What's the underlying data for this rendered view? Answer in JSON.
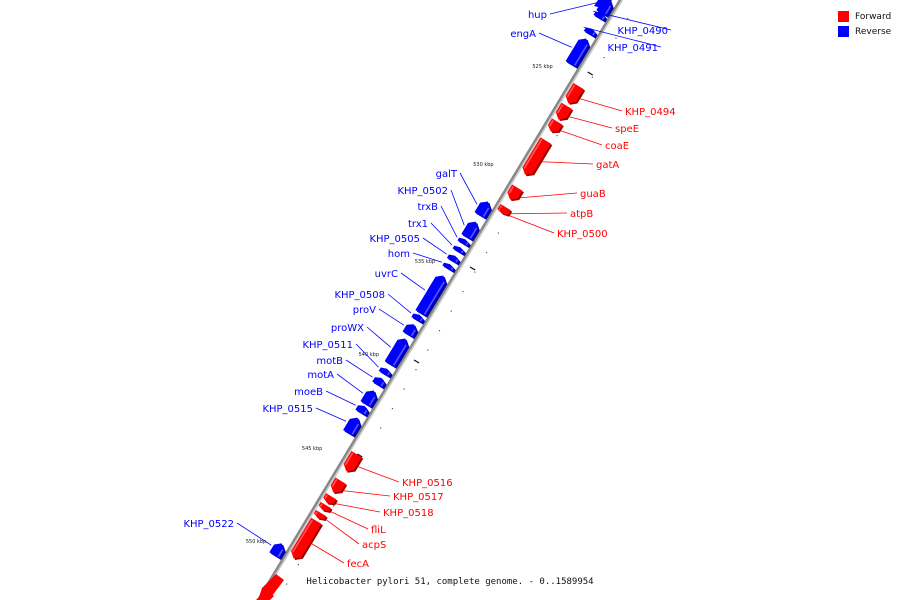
{
  "title": "Helicobacter pylori 51, complete genome. - 0..1589954",
  "legend": [
    {
      "label": "Forward",
      "color": "#ff0000"
    },
    {
      "label": "Reverse",
      "color": "#0000ff"
    }
  ],
  "colors": {
    "forward": "#ff0000",
    "reverse": "#0000ff",
    "backbone": "#888888"
  },
  "ticks": [
    {
      "label": "525 kbp",
      "kbp": 525
    },
    {
      "label": "530 kbp",
      "kbp": 530
    },
    {
      "label": "535 kbp",
      "kbp": 535
    },
    {
      "label": "540 kbp",
      "kbp": 540
    },
    {
      "label": "545 kbp",
      "kbp": 545
    },
    {
      "label": "550 kbp",
      "kbp": 550
    }
  ],
  "genes": [
    {
      "name": "hup",
      "strand": "reverse"
    },
    {
      "name": "engA",
      "strand": "reverse"
    },
    {
      "name": "KHP_0490",
      "strand": "reverse"
    },
    {
      "name": "KHP_0491",
      "strand": "reverse"
    },
    {
      "name": "KHP_0494",
      "strand": "forward"
    },
    {
      "name": "speE",
      "strand": "forward"
    },
    {
      "name": "coaE",
      "strand": "forward"
    },
    {
      "name": "gatA",
      "strand": "forward"
    },
    {
      "name": "guaB",
      "strand": "forward"
    },
    {
      "name": "atpB",
      "strand": "forward"
    },
    {
      "name": "KHP_0500",
      "strand": "forward"
    },
    {
      "name": "galT",
      "strand": "reverse"
    },
    {
      "name": "KHP_0502",
      "strand": "reverse"
    },
    {
      "name": "trxB",
      "strand": "reverse"
    },
    {
      "name": "trx1",
      "strand": "reverse"
    },
    {
      "name": "KHP_0505",
      "strand": "reverse"
    },
    {
      "name": "hom",
      "strand": "reverse"
    },
    {
      "name": "uvrC",
      "strand": "reverse"
    },
    {
      "name": "KHP_0508",
      "strand": "reverse"
    },
    {
      "name": "proV",
      "strand": "reverse"
    },
    {
      "name": "proWX",
      "strand": "reverse"
    },
    {
      "name": "KHP_0511",
      "strand": "reverse"
    },
    {
      "name": "motB",
      "strand": "reverse"
    },
    {
      "name": "motA",
      "strand": "reverse"
    },
    {
      "name": "moeB",
      "strand": "reverse"
    },
    {
      "name": "KHP_0515",
      "strand": "reverse"
    },
    {
      "name": "KHP_0516",
      "strand": "forward"
    },
    {
      "name": "KHP_0517",
      "strand": "forward"
    },
    {
      "name": "KHP_0518",
      "strand": "forward"
    },
    {
      "name": "fliL",
      "strand": "forward"
    },
    {
      "name": "acpS",
      "strand": "forward"
    },
    {
      "name": "fecA",
      "strand": "forward"
    },
    {
      "name": "KHP_0522",
      "strand": "reverse"
    }
  ]
}
